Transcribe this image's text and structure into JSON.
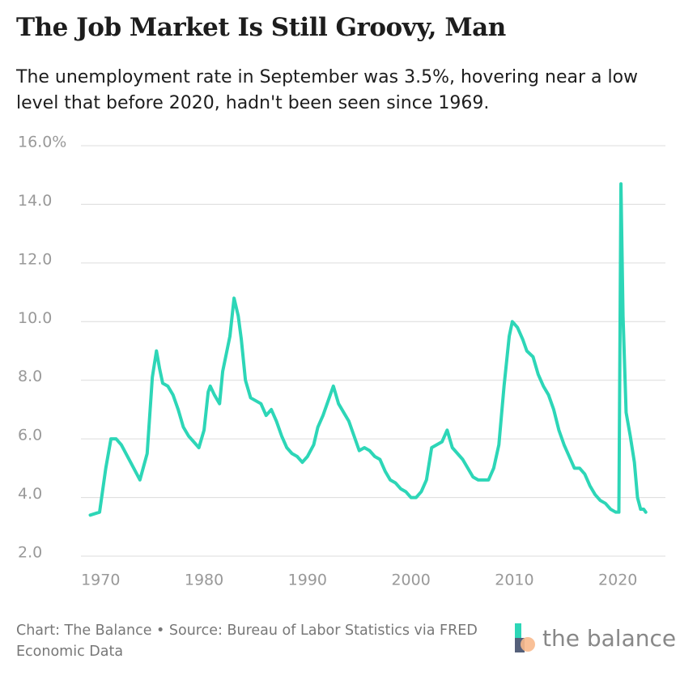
{
  "chart_data": {
    "type": "line",
    "title": "The Job Market Is Still Groovy, Man",
    "subtitle": "The unemployment rate in September was 3.5%, hovering near a low level that before 2020, hadn't been seen since 1969.",
    "source": "Chart: The Balance • Source: Bureau of Labor Statistics via FRED Economic Data",
    "logo": "the balance",
    "xlim": [
      1968.1,
      2024.6
    ],
    "xticks": [
      1970,
      1980,
      1990,
      2000,
      2010,
      2020
    ],
    "ylim": [
      2,
      16
    ],
    "yticks": [
      {
        "value": 2,
        "label": "2.0"
      },
      {
        "value": 4,
        "label": "4.0"
      },
      {
        "value": 6,
        "label": "6.0"
      },
      {
        "value": 8,
        "label": "8.0"
      },
      {
        "value": 10,
        "label": "10.0"
      },
      {
        "value": 12,
        "label": "12.0"
      },
      {
        "value": 14,
        "label": "14.0"
      },
      {
        "value": 16,
        "label": "16.0%"
      }
    ],
    "grid": true,
    "series": [
      {
        "color": "#2dd6b7",
        "x": [
          1969.0,
          1969.9,
          1970.5,
          1971.0,
          1971.5,
          1972.0,
          1972.9,
          1973.5,
          1973.8,
          1974.5,
          1975.0,
          1975.4,
          1975.7,
          1976.0,
          1976.5,
          1977.0,
          1977.5,
          1978.0,
          1978.5,
          1979.0,
          1979.5,
          1980.0,
          1980.4,
          1980.6,
          1981.0,
          1981.5,
          1981.8,
          1982.5,
          1982.9,
          1983.3,
          1983.6,
          1984.0,
          1984.5,
          1985.0,
          1985.5,
          1986.0,
          1986.5,
          1987.0,
          1987.5,
          1988.0,
          1988.5,
          1989.0,
          1989.5,
          1990.0,
          1990.6,
          1991.0,
          1991.5,
          1992.0,
          1992.5,
          1993.0,
          1993.5,
          1994.0,
          1994.5,
          1995.0,
          1995.5,
          1996.0,
          1996.5,
          1997.0,
          1997.5,
          1998.0,
          1998.5,
          1999.0,
          1999.5,
          2000.0,
          2000.5,
          2001.0,
          2001.5,
          2002.0,
          2002.5,
          2003.0,
          2003.5,
          2004.0,
          2004.5,
          2005.0,
          2005.5,
          2006.0,
          2006.5,
          2007.0,
          2007.5,
          2008.0,
          2008.5,
          2009.0,
          2009.5,
          2009.8,
          2010.3,
          2010.8,
          2011.2,
          2011.8,
          2012.3,
          2012.8,
          2013.3,
          2013.8,
          2014.3,
          2014.8,
          2015.3,
          2015.8,
          2016.3,
          2016.8,
          2017.3,
          2017.8,
          2018.3,
          2018.8,
          2019.3,
          2019.8,
          2020.1,
          2020.3,
          2020.5,
          2020.8,
          2021.2,
          2021.6,
          2021.9,
          2022.2,
          2022.5,
          2022.7
        ],
        "values": [
          3.4,
          3.5,
          5.0,
          6.0,
          6.0,
          5.8,
          5.2,
          4.8,
          4.6,
          5.5,
          8.1,
          9.0,
          8.4,
          7.9,
          7.8,
          7.5,
          7.0,
          6.4,
          6.1,
          5.9,
          5.7,
          6.3,
          7.6,
          7.8,
          7.5,
          7.2,
          8.3,
          9.5,
          10.8,
          10.2,
          9.4,
          8.0,
          7.4,
          7.3,
          7.2,
          6.8,
          7.0,
          6.6,
          6.1,
          5.7,
          5.5,
          5.4,
          5.2,
          5.4,
          5.8,
          6.4,
          6.8,
          7.3,
          7.8,
          7.2,
          6.9,
          6.6,
          6.1,
          5.6,
          5.7,
          5.6,
          5.4,
          5.3,
          4.9,
          4.6,
          4.5,
          4.3,
          4.2,
          4.0,
          4.0,
          4.2,
          4.6,
          5.7,
          5.8,
          5.9,
          6.3,
          5.7,
          5.5,
          5.3,
          5.0,
          4.7,
          4.6,
          4.6,
          4.6,
          5.0,
          5.8,
          7.8,
          9.5,
          10.0,
          9.8,
          9.4,
          9.0,
          8.8,
          8.2,
          7.8,
          7.5,
          7.0,
          6.3,
          5.8,
          5.4,
          5.0,
          5.0,
          4.8,
          4.4,
          4.1,
          3.9,
          3.8,
          3.6,
          3.5,
          3.5,
          14.7,
          10.2,
          6.9,
          6.1,
          5.2,
          4.0,
          3.6,
          3.6,
          3.5
        ]
      }
    ]
  }
}
